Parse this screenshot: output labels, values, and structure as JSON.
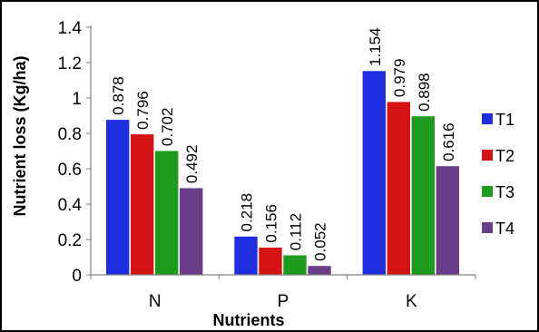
{
  "chart_data": {
    "type": "bar",
    "categories": [
      "N",
      "P",
      "K"
    ],
    "series": [
      {
        "name": "T1",
        "values": [
          0.878,
          0.218,
          1.154
        ],
        "color": "#1f2fe0",
        "label_text": [
          "0.878",
          "0.218",
          "1.154"
        ]
      },
      {
        "name": "T2",
        "values": [
          0.796,
          0.156,
          0.979
        ],
        "color": "#d41414",
        "label_text": [
          "0.796",
          "0.156",
          "0.979"
        ]
      },
      {
        "name": "T3",
        "values": [
          0.702,
          0.112,
          0.898
        ],
        "color": "#1e9a1e",
        "label_text": [
          "0.702",
          "0.112",
          "0.898"
        ]
      },
      {
        "name": "T4",
        "values": [
          0.492,
          0.052,
          0.616
        ],
        "color": "#6a3d8a",
        "label_text": [
          "0.492",
          "0.052",
          "0.616"
        ]
      }
    ],
    "xlabel": "Nutrients",
    "ylabel": "Nutrient loss (Kg/ha)",
    "ylim": [
      0,
      1.4
    ],
    "yticks": [
      "0",
      "0.2",
      "0.4",
      "0.6",
      "0.8",
      "1",
      "1.2",
      "1.4"
    ],
    "grid": false,
    "legend_position": "right"
  }
}
